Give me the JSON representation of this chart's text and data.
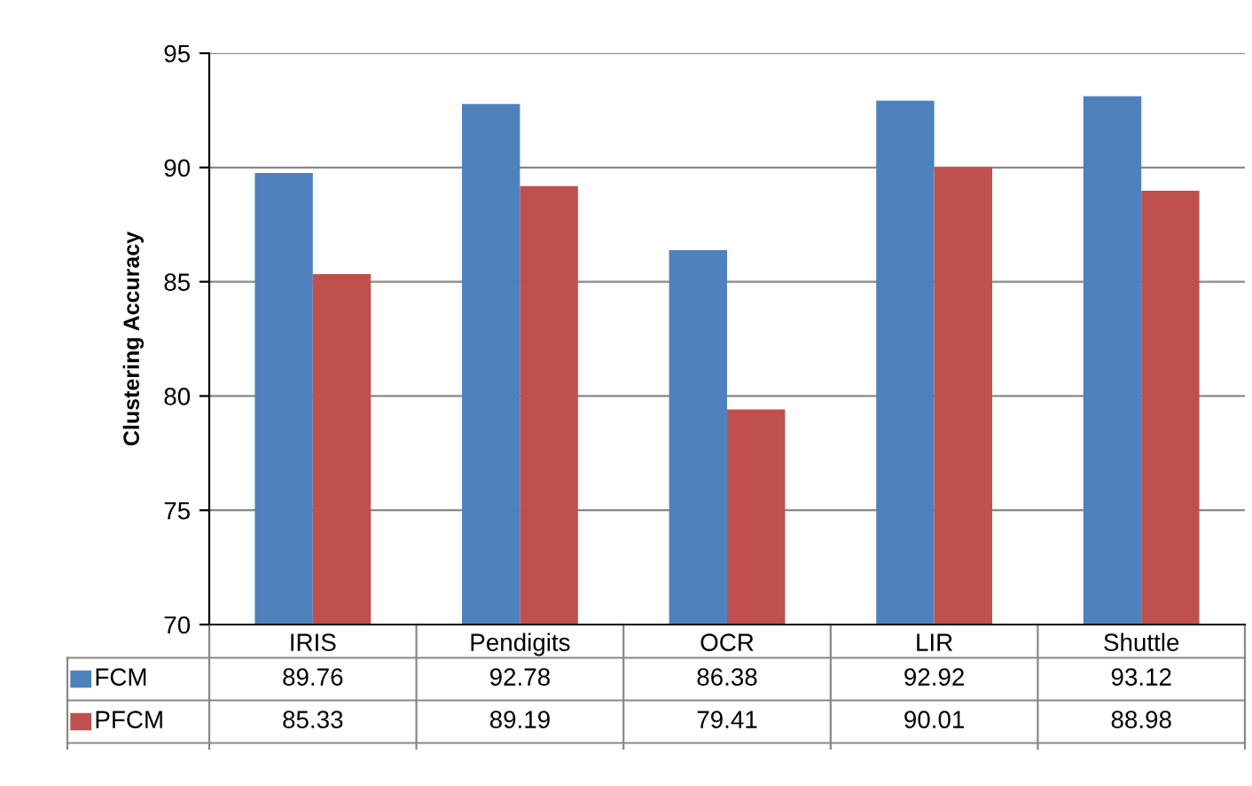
{
  "chart_data": {
    "type": "bar",
    "ylabel": "Clustering Accuracy",
    "categories": [
      "IRIS",
      "Pendigits",
      "OCR",
      "LIR",
      "Shuttle"
    ],
    "series": [
      {
        "name": "FCM",
        "color": "#4f81bd",
        "values": [
          89.76,
          92.78,
          86.38,
          92.92,
          93.12
        ]
      },
      {
        "name": "PFCM",
        "color": "#c0504d",
        "values": [
          85.33,
          89.19,
          79.41,
          90.01,
          88.98
        ]
      }
    ],
    "ylim": [
      70,
      95
    ],
    "yticks": [
      70,
      75,
      80,
      85,
      90,
      95
    ],
    "grid": "y",
    "legend": "bottom",
    "data_labels": true
  }
}
